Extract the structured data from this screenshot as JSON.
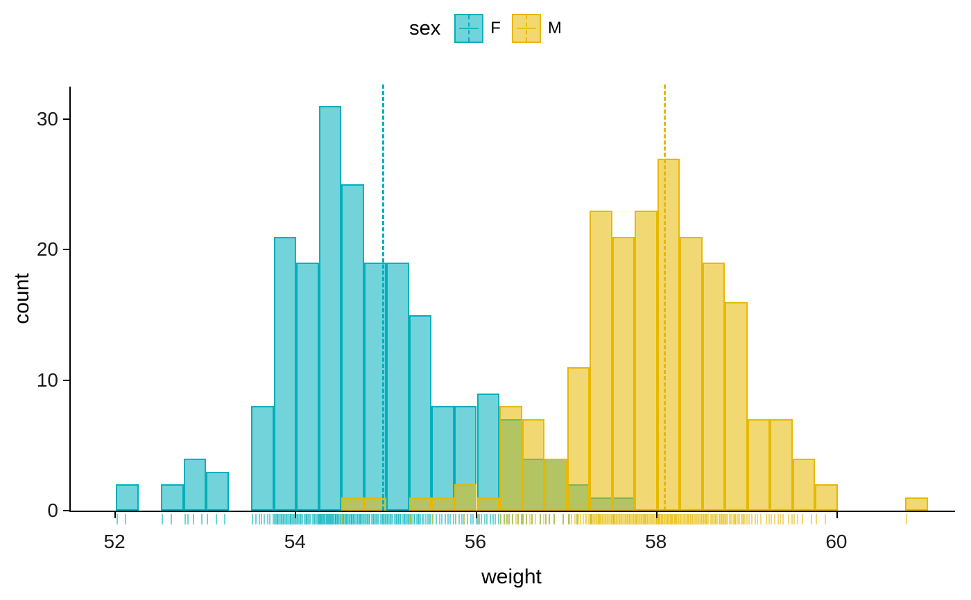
{
  "chart_data": {
    "type": "bar",
    "subtype": "overlapping-histogram-with-rug-and-mean-lines",
    "title": "",
    "xlabel": "weight",
    "ylabel": "count",
    "xlim": [
      51.5,
      61.3
    ],
    "ylim": [
      0,
      32.5
    ],
    "x_ticks": [
      52,
      54,
      56,
      58,
      60
    ],
    "y_ticks": [
      0,
      10,
      20,
      30
    ],
    "bin_width": 0.25,
    "grid": false,
    "legend": {
      "title": "sex",
      "position": "top"
    },
    "colors": {
      "F": "#00AFBB",
      "M": "#E7B800",
      "axis": "#000000",
      "tick_label": "#1a1a1a"
    },
    "series": [
      {
        "name": "F",
        "color": "#00AFBB",
        "fill": "rgba(0,175,187,0.55)",
        "mean": 54.95,
        "bins": [
          [
            52.0,
            2
          ],
          [
            52.5,
            2
          ],
          [
            52.75,
            4
          ],
          [
            53.0,
            3
          ],
          [
            53.5,
            8
          ],
          [
            53.75,
            21
          ],
          [
            54.0,
            19
          ],
          [
            54.25,
            31
          ],
          [
            54.5,
            25
          ],
          [
            54.75,
            19
          ],
          [
            55.0,
            19
          ],
          [
            55.25,
            15
          ],
          [
            55.5,
            8
          ],
          [
            55.75,
            8
          ],
          [
            56.0,
            9
          ],
          [
            56.25,
            7
          ],
          [
            56.5,
            4
          ],
          [
            56.75,
            4
          ],
          [
            57.0,
            2
          ],
          [
            57.25,
            1
          ],
          [
            57.5,
            1
          ]
        ]
      },
      {
        "name": "M",
        "color": "#E7B800",
        "fill": "rgba(231,184,0,0.55)",
        "mean": 58.07,
        "bins": [
          [
            54.5,
            1
          ],
          [
            54.75,
            1
          ],
          [
            55.25,
            1
          ],
          [
            55.5,
            1
          ],
          [
            55.75,
            2
          ],
          [
            56.0,
            1
          ],
          [
            56.25,
            8
          ],
          [
            56.5,
            7
          ],
          [
            56.75,
            4
          ],
          [
            57.0,
            11
          ],
          [
            57.25,
            23
          ],
          [
            57.5,
            21
          ],
          [
            57.75,
            23
          ],
          [
            58.0,
            27
          ],
          [
            58.25,
            21
          ],
          [
            58.5,
            19
          ],
          [
            58.75,
            16
          ],
          [
            59.0,
            7
          ],
          [
            59.25,
            7
          ],
          [
            59.5,
            4
          ],
          [
            59.75,
            2
          ],
          [
            60.75,
            1
          ]
        ]
      }
    ]
  }
}
